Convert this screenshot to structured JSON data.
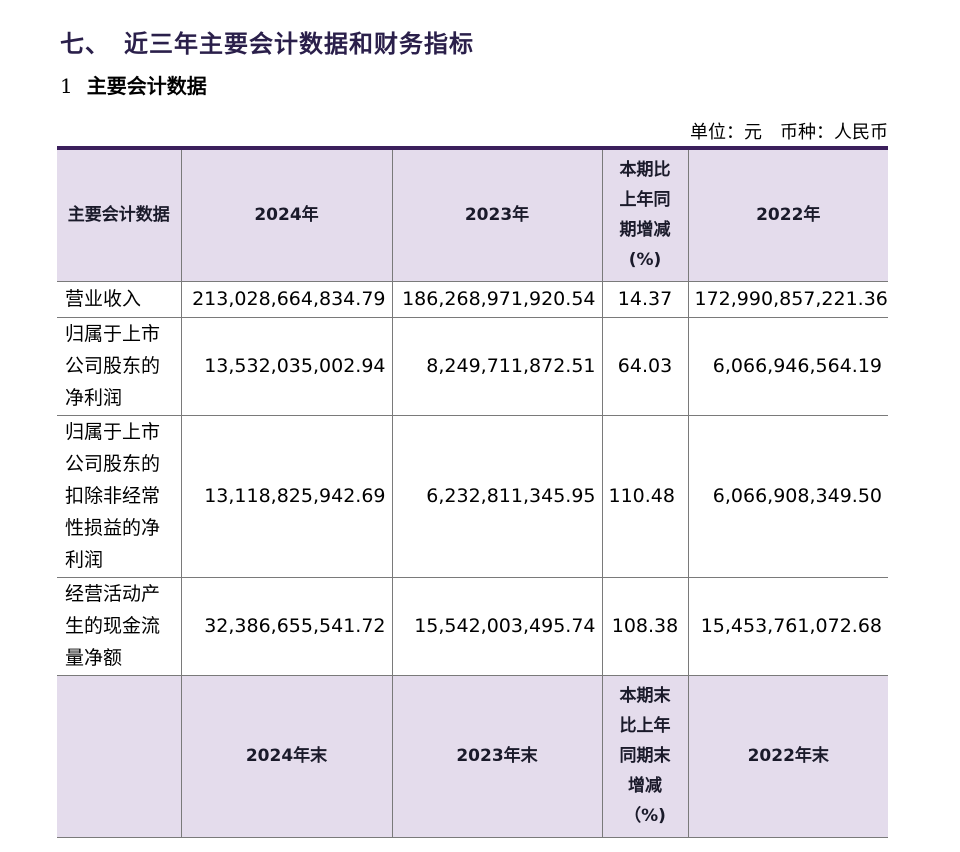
{
  "section_title": {
    "number": "七、",
    "text": "近三年主要会计数据和财务指标"
  },
  "subsection_title": {
    "number": "1",
    "text": "主要会计数据"
  },
  "unit_note": {
    "unit": "单位：元",
    "currency": "币种：人民币"
  },
  "table": {
    "header": {
      "col0": "主要会计数据",
      "col1": "2024年",
      "col2": "2023年",
      "col3": "本期比上年同期增减(%)",
      "col4": "2022年"
    },
    "rows": [
      {
        "label": "营业收入",
        "v2024": "213,028,664,834.79",
        "v2023": "186,268,971,920.54",
        "change": "14.37",
        "v2022": "172,990,857,221.36"
      },
      {
        "label": "归属于上市公司股东的净利润",
        "v2024": "13,532,035,002.94",
        "v2023": "8,249,711,872.51",
        "change": "64.03",
        "v2022": "6,066,946,564.19"
      },
      {
        "label": "归属于上市公司股东的扣除非经常性损益的净利润",
        "v2024": "13,118,825,942.69",
        "v2023": "6,232,811,345.95",
        "change": "110.48",
        "v2022": "6,066,908,349.50"
      },
      {
        "label": "经营活动产生的现金流量净额",
        "v2024": "32,386,655,541.72",
        "v2023": "15,542,003,495.74",
        "change": "108.38",
        "v2022": "15,453,761,072.68"
      }
    ],
    "header2": {
      "col0": "",
      "col1": "2024年末",
      "col2": "2023年末",
      "col3": "本期末比上年同期末增减（%)",
      "col4": "2022年末"
    }
  }
}
